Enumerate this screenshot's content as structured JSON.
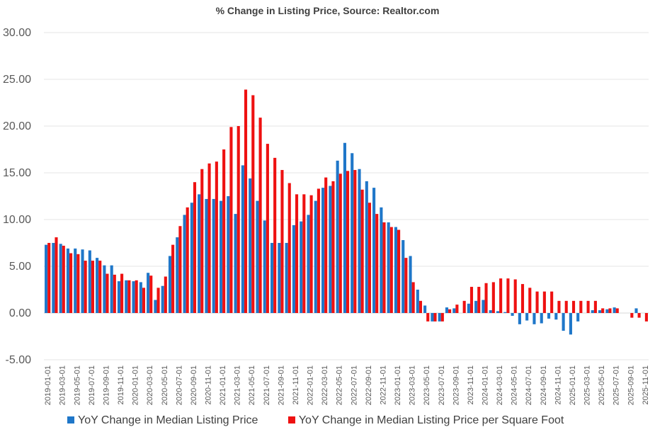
{
  "chart_data": {
    "type": "bar",
    "title": "% Change in Listing Price, Source: Realtor.com",
    "xlabel": "",
    "ylabel": "",
    "ylim": [
      -5,
      30
    ],
    "yticks": [
      -5,
      0,
      5,
      10,
      15,
      20,
      25,
      30
    ],
    "ytick_labels": [
      "-5.00",
      "0.00",
      "5.00",
      "10.00",
      "15.00",
      "20.00",
      "25.00",
      "30.00"
    ],
    "grid": true,
    "legend_position": "bottom",
    "categories": [
      "2019-01-01",
      "2019-02-01",
      "2019-03-01",
      "2019-04-01",
      "2019-05-01",
      "2019-06-01",
      "2019-07-01",
      "2019-08-01",
      "2019-09-01",
      "2019-10-01",
      "2019-11-01",
      "2019-12-01",
      "2020-01-01",
      "2020-02-01",
      "2020-03-01",
      "2020-04-01",
      "2020-05-01",
      "2020-06-01",
      "2020-07-01",
      "2020-08-01",
      "2020-09-01",
      "2020-10-01",
      "2020-11-01",
      "2020-12-01",
      "2021-01-01",
      "2021-02-01",
      "2021-03-01",
      "2021-04-01",
      "2021-05-01",
      "2021-06-01",
      "2021-07-01",
      "2021-08-01",
      "2021-09-01",
      "2021-10-01",
      "2021-11-01",
      "2021-12-01",
      "2022-01-01",
      "2022-02-01",
      "2022-03-01",
      "2022-04-01",
      "2022-05-01",
      "2022-06-01",
      "2022-07-01",
      "2022-08-01",
      "2022-09-01",
      "2022-10-01",
      "2022-11-01",
      "2022-12-01",
      "2023-01-01",
      "2023-02-01",
      "2023-03-01",
      "2023-04-01",
      "2023-05-01",
      "2023-06-01",
      "2023-07-01",
      "2023-08-01",
      "2023-09-01",
      "2023-10-01",
      "2023-11-01",
      "2023-12-01",
      "2024-01-01",
      "2024-02-01",
      "2024-03-01",
      "2024-04-01",
      "2024-05-01",
      "2024-06-01",
      "2024-07-01",
      "2024-08-01",
      "2024-09-01",
      "2024-10-01",
      "2024-11-01",
      "2024-12-01",
      "2025-01-01",
      "2025-02-01",
      "2025-03-01",
      "2025-04-01",
      "2025-05-01",
      "2025-06-01",
      "2025-07-01",
      "2025-08-01",
      "2025-09-01",
      "2025-10-01",
      "2025-11-01"
    ],
    "tick_every": 2,
    "series": [
      {
        "name": "YoY Change in Median Listing Price",
        "color": "#1F77C9",
        "values": [
          7.3,
          7.5,
          7.4,
          6.9,
          6.9,
          6.8,
          6.7,
          5.9,
          5.1,
          5.1,
          3.4,
          3.5,
          3.4,
          3.3,
          4.3,
          1.4,
          2.9,
          6.1,
          8.1,
          10.5,
          11.8,
          12.7,
          12.2,
          12.2,
          12.0,
          12.5,
          10.6,
          15.8,
          14.4,
          12.0,
          9.9,
          7.5,
          7.5,
          7.5,
          9.4,
          9.8,
          10.5,
          12.0,
          13.4,
          13.6,
          16.3,
          18.2,
          17.1,
          15.4,
          14.1,
          13.4,
          11.3,
          9.7,
          9.2,
          7.8,
          6.1,
          2.5,
          0.8,
          -0.9,
          -0.9,
          0.6,
          0.5,
          0.0,
          1.0,
          1.3,
          1.4,
          0.3,
          0.2,
          0.1,
          -0.3,
          -1.2,
          -0.8,
          -1.2,
          -1.1,
          -0.6,
          -0.7,
          -1.9,
          -2.3,
          -0.9,
          0.0,
          0.3,
          0.3,
          0.4,
          0.6,
          0.0,
          0.0,
          0.5,
          0.0
        ]
      },
      {
        "name": "YoY Change in Median Listing Price per Square Foot",
        "color": "#EE1111",
        "values": [
          7.5,
          8.1,
          7.2,
          6.4,
          6.3,
          5.6,
          5.6,
          5.6,
          4.2,
          4.1,
          4.2,
          3.5,
          3.5,
          2.7,
          4.0,
          2.7,
          3.9,
          7.3,
          9.3,
          11.3,
          14.0,
          15.4,
          16.0,
          16.2,
          17.5,
          19.9,
          20.0,
          23.9,
          23.3,
          20.9,
          18.1,
          16.6,
          15.3,
          13.9,
          12.7,
          12.7,
          12.6,
          13.3,
          14.5,
          14.1,
          14.9,
          15.2,
          15.3,
          13.2,
          11.8,
          10.6,
          9.7,
          9.2,
          8.9,
          5.9,
          3.3,
          1.3,
          -0.9,
          -0.9,
          -0.9,
          0.4,
          0.9,
          1.3,
          2.8,
          2.8,
          3.2,
          3.3,
          3.7,
          3.7,
          3.6,
          3.1,
          2.7,
          2.3,
          2.3,
          2.3,
          1.3,
          1.3,
          1.3,
          1.3,
          1.3,
          1.3,
          0.5,
          0.5,
          0.5,
          0.0,
          -0.5,
          -0.5,
          -0.9
        ]
      }
    ]
  }
}
